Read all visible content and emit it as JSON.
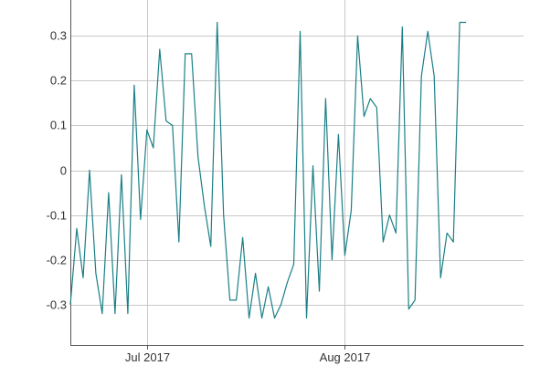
{
  "chart_data": {
    "type": "line",
    "title": "",
    "xlabel": "",
    "ylabel": "",
    "grid": true,
    "ylim": [
      -0.39,
      0.38
    ],
    "xlim": [
      "2017-06-19",
      "2017-08-29"
    ],
    "y_ticks": [
      {
        "value": -0.3,
        "label": "-0.3"
      },
      {
        "value": -0.2,
        "label": "-0.2"
      },
      {
        "value": -0.1,
        "label": "-0.1"
      },
      {
        "value": 0,
        "label": "0"
      },
      {
        "value": 0.1,
        "label": "0.1"
      },
      {
        "value": 0.2,
        "label": "0.2"
      },
      {
        "value": 0.3,
        "label": "0.3"
      }
    ],
    "x_ticks": [
      {
        "date": "2017-07-01",
        "label": "Jul 2017"
      },
      {
        "date": "2017-08-01",
        "label": "Aug 2017"
      }
    ],
    "colors": {
      "line": "#1a7f86",
      "grid": "#c8c8c8",
      "axis": "#555555"
    },
    "series": [
      {
        "name": "",
        "x": [
          "2017-06-19",
          "2017-06-20",
          "2017-06-21",
          "2017-06-22",
          "2017-06-23",
          "2017-06-24",
          "2017-06-25",
          "2017-06-26",
          "2017-06-27",
          "2017-06-28",
          "2017-06-29",
          "2017-06-30",
          "2017-07-01",
          "2017-07-02",
          "2017-07-03",
          "2017-07-04",
          "2017-07-05",
          "2017-07-06",
          "2017-07-07",
          "2017-07-08",
          "2017-07-09",
          "2017-07-10",
          "2017-07-11",
          "2017-07-12",
          "2017-07-13",
          "2017-07-14",
          "2017-07-15",
          "2017-07-16",
          "2017-07-17",
          "2017-07-18",
          "2017-07-19",
          "2017-07-20",
          "2017-07-21",
          "2017-07-22",
          "2017-07-23",
          "2017-07-24",
          "2017-07-25",
          "2017-07-26",
          "2017-07-27",
          "2017-07-28",
          "2017-07-29",
          "2017-07-30",
          "2017-07-31",
          "2017-08-01",
          "2017-08-02",
          "2017-08-03",
          "2017-08-04",
          "2017-08-05",
          "2017-08-06",
          "2017-08-07",
          "2017-08-08",
          "2017-08-09",
          "2017-08-10",
          "2017-08-11",
          "2017-08-12",
          "2017-08-13",
          "2017-08-14",
          "2017-08-15",
          "2017-08-16",
          "2017-08-17",
          "2017-08-18",
          "2017-08-19",
          "2017-08-20"
        ],
        "values": [
          -0.3,
          -0.13,
          -0.24,
          0.0,
          -0.23,
          -0.32,
          -0.05,
          -0.32,
          -0.01,
          -0.32,
          0.19,
          -0.11,
          0.09,
          0.05,
          0.27,
          0.11,
          0.1,
          -0.16,
          0.26,
          0.26,
          0.03,
          -0.08,
          -0.17,
          0.33,
          -0.1,
          -0.29,
          -0.29,
          -0.15,
          -0.33,
          -0.23,
          -0.33,
          -0.26,
          -0.33,
          -0.3,
          -0.25,
          -0.21,
          0.31,
          -0.33,
          0.01,
          -0.27,
          0.16,
          -0.2,
          0.08,
          -0.19,
          -0.09,
          0.3,
          0.12,
          0.16,
          0.14,
          -0.16,
          -0.1,
          -0.14,
          0.32,
          -0.31,
          -0.29,
          0.21,
          0.31,
          0.21,
          -0.24,
          -0.14,
          -0.16,
          0.33,
          0.33
        ]
      }
    ]
  }
}
